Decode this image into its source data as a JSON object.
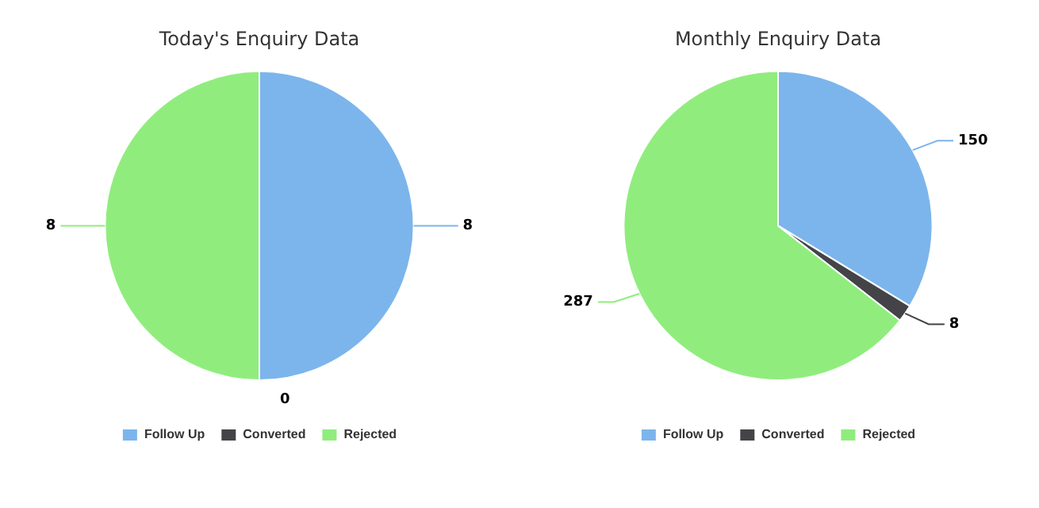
{
  "chart_data": [
    {
      "type": "pie",
      "title": "Today's Enquiry Data",
      "categories": [
        "Follow Up",
        "Converted",
        "Rejected"
      ],
      "values": [
        8,
        0,
        8
      ],
      "value_labels": [
        "8",
        "0",
        "8"
      ],
      "colors": [
        "#7cb5ec",
        "#434348",
        "#90ed7d"
      ],
      "legend": "bottom"
    },
    {
      "type": "pie",
      "title": "Monthly Enquiry Data",
      "categories": [
        "Follow Up",
        "Converted",
        "Rejected"
      ],
      "values": [
        150,
        8,
        287
      ],
      "colors": [
        "#7cb5ec",
        "#434348",
        "#90ed7d"
      ],
      "data_labels": true,
      "legend": "bottom"
    }
  ]
}
